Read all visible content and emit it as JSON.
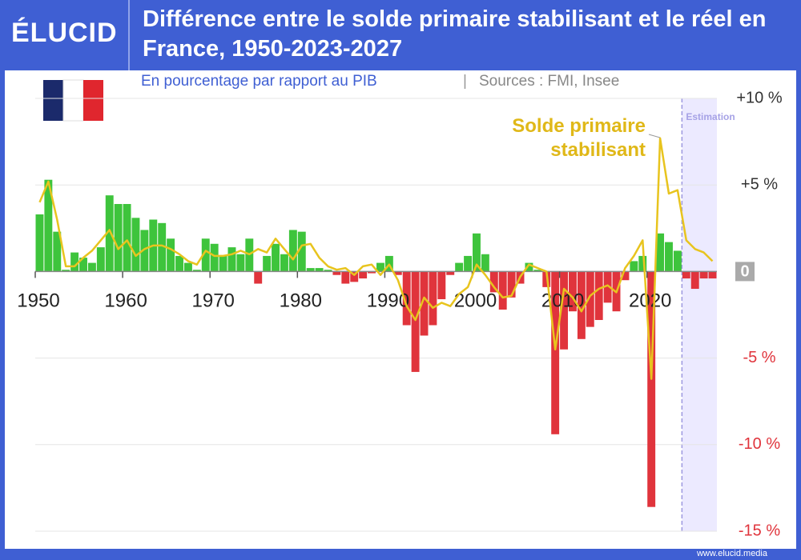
{
  "brand": "ÉLUCID",
  "footer": "www.elucid.media",
  "chart_data": {
    "type": "bar",
    "title": "Différence entre le solde primaire stabilisant et le réel en France, 1950-2023-2027",
    "subtitle": "En pourcentage par rapport au PIB",
    "sources": "Sources : FMI, Insee",
    "x": [
      1950,
      1951,
      1952,
      1953,
      1954,
      1955,
      1956,
      1957,
      1958,
      1959,
      1960,
      1961,
      1962,
      1963,
      1964,
      1965,
      1966,
      1967,
      1968,
      1969,
      1970,
      1971,
      1972,
      1973,
      1974,
      1975,
      1976,
      1977,
      1978,
      1979,
      1980,
      1981,
      1982,
      1983,
      1984,
      1985,
      1986,
      1987,
      1988,
      1989,
      1990,
      1991,
      1992,
      1993,
      1994,
      1995,
      1996,
      1997,
      1998,
      1999,
      2000,
      2001,
      2002,
      2003,
      2004,
      2005,
      2006,
      2007,
      2008,
      2009,
      2010,
      2011,
      2012,
      2013,
      2014,
      2015,
      2016,
      2017,
      2018,
      2019,
      2020,
      2021,
      2022,
      2023,
      2024,
      2025,
      2026,
      2027
    ],
    "series": [
      {
        "positive_color": "#3ec43c",
        "negative_color": "#e0343c",
        "values": [
          3.3,
          5.3,
          2.3,
          0.1,
          1.1,
          0.8,
          0.5,
          1.4,
          4.4,
          3.9,
          3.9,
          3.1,
          2.4,
          3.0,
          2.8,
          1.9,
          0.9,
          0.5,
          0.1,
          1.9,
          1.6,
          0.9,
          1.4,
          1.0,
          1.9,
          -0.7,
          0.9,
          1.6,
          1.0,
          2.4,
          2.3,
          0.2,
          0.2,
          0.1,
          -0.2,
          -0.7,
          -0.6,
          -0.4,
          -0.1,
          0.5,
          0.9,
          -0.2,
          -3.1,
          -5.8,
          -3.7,
          -3.1,
          -1.6,
          -0.2,
          0.5,
          0.9,
          2.2,
          1.0,
          -1.2,
          -2.2,
          -1.5,
          -0.7,
          0.5,
          0.1,
          -0.9,
          -9.4,
          -4.5,
          -2.3,
          -3.9,
          -3.2,
          -2.8,
          -1.8,
          -2.3,
          -0.5,
          0.6,
          0.9,
          -13.6,
          2.2,
          1.7,
          1.2,
          -0.4,
          -1.0,
          -0.4,
          -0.4
        ]
      },
      {
        "type": "line",
        "name": "Solde primaire stabilisant",
        "color": "#e8c41e",
        "values": [
          4.0,
          5.2,
          3.0,
          0.3,
          0.3,
          0.8,
          1.2,
          1.8,
          2.4,
          1.3,
          1.8,
          0.9,
          1.3,
          1.5,
          1.5,
          1.3,
          1.0,
          0.6,
          0.4,
          1.2,
          0.9,
          0.9,
          1.0,
          1.2,
          1.0,
          1.3,
          1.1,
          1.9,
          1.3,
          0.7,
          1.5,
          1.6,
          0.8,
          0.3,
          0.1,
          0.2,
          -0.2,
          0.3,
          0.4,
          -0.2,
          0.4,
          -0.5,
          -2.0,
          -2.8,
          -1.5,
          -2.1,
          -1.8,
          -2.0,
          -1.3,
          -0.9,
          0.4,
          -0.2,
          -0.9,
          -1.5,
          -1.4,
          -0.3,
          0.4,
          0.2,
          0.0,
          -4.5,
          -1.0,
          -1.5,
          -2.3,
          -1.4,
          -1.0,
          -0.8,
          -1.2,
          0.2,
          0.9,
          1.8,
          -6.2,
          7.7,
          4.5,
          4.7,
          1.8,
          1.3,
          1.1,
          0.6
        ]
      }
    ],
    "xlim": [
      1950,
      2028
    ],
    "xticks": [
      1950,
      1960,
      1970,
      1980,
      1990,
      2000,
      2010,
      2020
    ],
    "ylim": [
      -15,
      10
    ],
    "yticks": [
      {
        "value": 10,
        "label": "+10 %"
      },
      {
        "value": 5,
        "label": "+5 %"
      },
      0,
      {
        "value": -5,
        "label": "-5 %"
      },
      {
        "value": -10,
        "label": "-10 %"
      },
      {
        "value": -15,
        "label": "-15 %"
      }
    ],
    "grid": true,
    "estimation": {
      "start": 2024,
      "label": "Estimation",
      "color": "#eceaff"
    }
  }
}
